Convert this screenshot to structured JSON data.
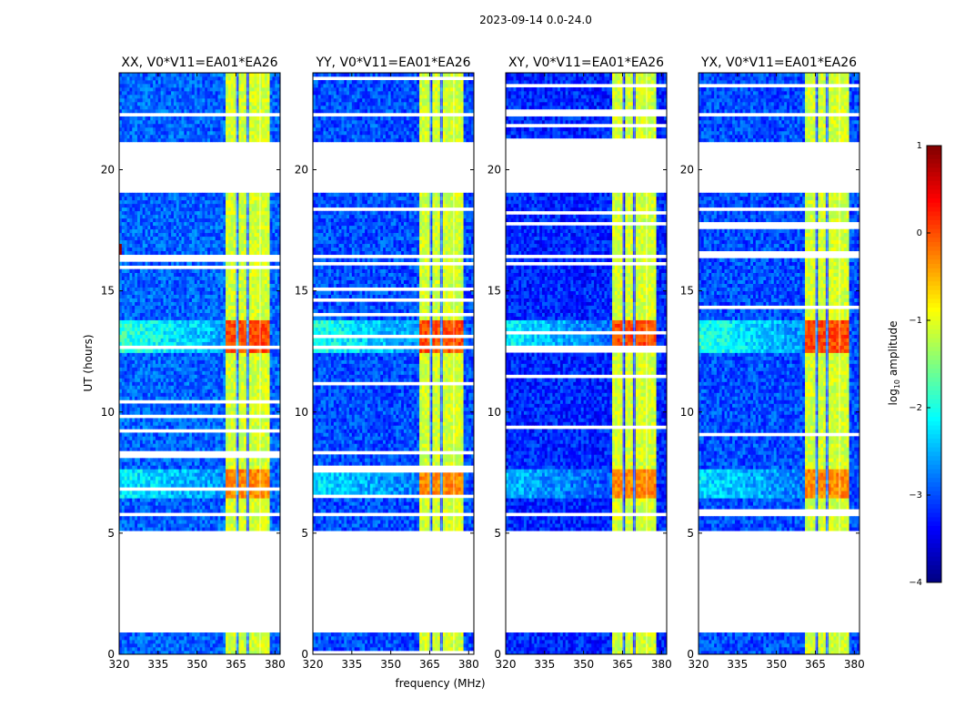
{
  "figure": {
    "suptitle": "2023-09-14 0.0-24.0",
    "xlabel": "frequency (MHz)",
    "ylabel": "UT (hours)",
    "colorbar_label_prefix": "log",
    "colorbar_label_sub": "10",
    "colorbar_label_suffix": " amplitude",
    "colormap": "jet"
  },
  "chart_data": {
    "type": "heatmap",
    "xlim": [
      320,
      382
    ],
    "ylim": [
      0,
      24
    ],
    "x_ticks": [
      320,
      335,
      350,
      365,
      380
    ],
    "y_ticks": [
      0,
      5,
      10,
      15,
      20
    ],
    "panels": [
      {
        "title": "XX, V0*V11=EA01*EA26",
        "base": -2.9,
        "strong_edge": 0.9
      },
      {
        "title": "YY, V0*V11=EA01*EA26",
        "base": -3.0,
        "strong_edge": 0.0
      },
      {
        "title": "XY, V0*V11=EA01*EA26",
        "base": -3.2,
        "strong_edge": 0.0
      },
      {
        "title": "YX, V0*V11=EA01*EA26",
        "base": -3.0,
        "strong_edge": 0.0
      }
    ],
    "colorbar": {
      "min": -4,
      "max": 1,
      "ticks": [
        1,
        0,
        -1,
        -2,
        -3,
        -4
      ]
    },
    "flagged_ut_ranges": [
      [
        0.85,
        5.1
      ],
      [
        5.65,
        5.8
      ],
      [
        16.3,
        16.45
      ],
      [
        19.0,
        21.2
      ],
      [
        22.2,
        22.4
      ]
    ],
    "rfi_bands_mhz": [
      [
        361,
        365
      ],
      [
        365.6,
        369.2
      ],
      [
        369.8,
        374
      ],
      [
        374.5,
        378.2
      ]
    ],
    "bright_ut_ranges": [
      [
        6.5,
        7.6,
        0.5
      ],
      [
        12.5,
        13.8,
        0.7
      ]
    ]
  }
}
